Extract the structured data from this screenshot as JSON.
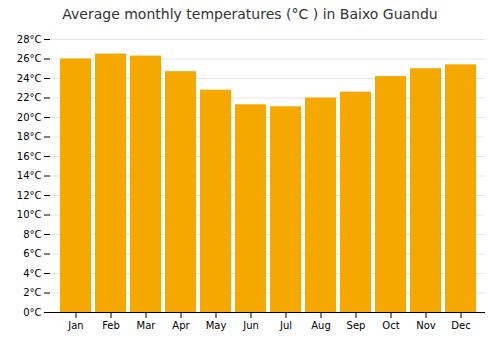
{
  "chart_data": {
    "type": "bar",
    "title": "Average monthly temperatures (°C ) in Baixo Guandu",
    "categories": [
      "Jan",
      "Feb",
      "Mar",
      "Apr",
      "May",
      "Jun",
      "Jul",
      "Aug",
      "Sep",
      "Oct",
      "Nov",
      "Dec"
    ],
    "values": [
      26.0,
      26.5,
      26.3,
      24.7,
      22.8,
      21.3,
      21.1,
      22.0,
      22.6,
      24.2,
      25.0,
      25.4
    ],
    "color": "#F5A800",
    "ylim": [
      0,
      28
    ],
    "yticks": [
      {
        "value": 0,
        "label": "0°C"
      },
      {
        "value": 2,
        "label": "2°C"
      },
      {
        "value": 4,
        "label": "4°C"
      },
      {
        "value": 6,
        "label": "6°C"
      },
      {
        "value": 8,
        "label": "8°C"
      },
      {
        "value": 10,
        "label": "10°C"
      },
      {
        "value": 12,
        "label": "12°C"
      },
      {
        "value": 14,
        "label": "14°C"
      },
      {
        "value": 16,
        "label": "16°C"
      },
      {
        "value": 18,
        "label": "18°C"
      },
      {
        "value": 20,
        "label": "20°C"
      },
      {
        "value": 22,
        "label": "22°C"
      },
      {
        "value": 24,
        "label": "24°C"
      },
      {
        "value": 26,
        "label": "26°C"
      },
      {
        "value": 28,
        "label": "28°C"
      }
    ],
    "grid": true
  }
}
